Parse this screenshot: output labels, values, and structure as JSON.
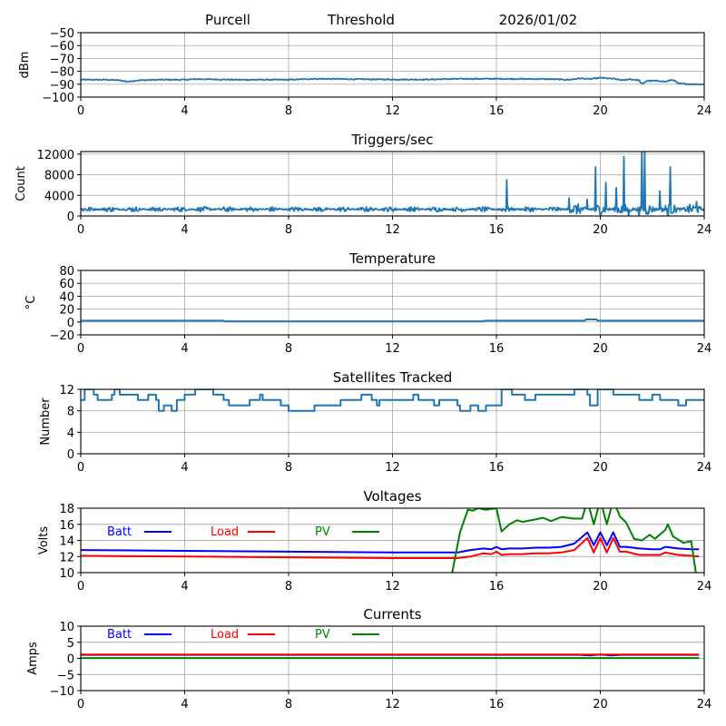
{
  "header": {
    "station": "Purcell",
    "mode": "Threshold",
    "date": "2026/01/02"
  },
  "chart_data": [
    {
      "id": "threshold",
      "type": "line",
      "title": "",
      "xlabel": "",
      "ylabel": "dBm",
      "xlim": [
        0,
        24
      ],
      "ylim": [
        -100,
        -50
      ],
      "xticks": [
        0,
        4,
        8,
        12,
        16,
        20,
        24
      ],
      "yticks": [
        -100,
        -90,
        -80,
        -70,
        -60,
        -50
      ],
      "ytick_labels": [
        "−100",
        "−90",
        "−80",
        "−70",
        "−60",
        "−50"
      ],
      "grid": true,
      "series": [
        {
          "name": "Threshold",
          "color": "#1f77b4",
          "x": [
            0,
            1,
            1.5,
            1.8,
            2.2,
            3,
            4,
            4.5,
            6,
            8,
            9,
            10,
            12,
            13.5,
            14,
            15,
            16,
            18,
            18.8,
            19.2,
            19.6,
            20,
            20.5,
            20.9,
            21.1,
            21.5,
            21.6,
            21.8,
            22.3,
            22.5,
            22.8,
            23,
            23.5,
            24
          ],
          "y": [
            -86.5,
            -86.5,
            -87,
            -88,
            -87,
            -86.5,
            -86.5,
            -86,
            -86.5,
            -86.5,
            -85.8,
            -86,
            -86.3,
            -86.3,
            -86,
            -85.8,
            -85.8,
            -86,
            -86.5,
            -85.5,
            -86,
            -85,
            -85.8,
            -87,
            -86,
            -87,
            -90,
            -87.3,
            -87.5,
            -88,
            -86.5,
            -89.5,
            -90,
            -90
          ]
        }
      ]
    },
    {
      "id": "triggers",
      "type": "line",
      "title": "Triggers/sec",
      "xlabel": "",
      "ylabel": "Count",
      "xlim": [
        0,
        24
      ],
      "ylim": [
        0,
        12500
      ],
      "xticks": [
        0,
        4,
        8,
        12,
        16,
        20,
        24
      ],
      "yticks": [
        0,
        4000,
        8000,
        12000
      ],
      "ytick_labels": [
        "0",
        "4000",
        "8000",
        "12000"
      ],
      "grid": true,
      "series": [
        {
          "name": "Triggers",
          "color": "#1f77b4",
          "baseline": 1300,
          "noise": 500,
          "spikes": [
            [
              16.4,
              7000
            ],
            [
              18.8,
              3500
            ],
            [
              19.5,
              3200
            ],
            [
              19.8,
              9500
            ],
            [
              20.2,
              6500
            ],
            [
              20.6,
              5500
            ],
            [
              20.9,
              11500
            ],
            [
              21.1,
              0
            ],
            [
              21.5,
              0
            ],
            [
              21.6,
              12500
            ],
            [
              21.7,
              12500
            ],
            [
              22.3,
              4800
            ],
            [
              22.7,
              9500
            ],
            [
              22.6,
              0
            ],
            [
              23.7,
              2800
            ]
          ]
        }
      ]
    },
    {
      "id": "temperature",
      "type": "line",
      "title": "Temperature",
      "xlabel": "",
      "ylabel": "°C",
      "xlim": [
        0,
        24
      ],
      "ylim": [
        -20,
        80
      ],
      "xticks": [
        0,
        4,
        8,
        12,
        16,
        20,
        24
      ],
      "yticks": [
        -20,
        0,
        20,
        40,
        60,
        80
      ],
      "ytick_labels": [
        "−20",
        "0",
        "20",
        "40",
        "60",
        "80"
      ],
      "grid": true,
      "series": [
        {
          "name": "Temperature",
          "color": "#1f77b4",
          "x": [
            0,
            5.5,
            5.55,
            15.5,
            15.55,
            19.4,
            19.45,
            19.85,
            19.9,
            24
          ],
          "y": [
            2,
            2,
            1,
            1,
            2,
            2,
            4,
            4,
            2,
            2
          ]
        }
      ]
    },
    {
      "id": "satellites",
      "type": "line",
      "title": "Satellites Tracked",
      "xlabel": "",
      "ylabel": "Number",
      "xlim": [
        0,
        24
      ],
      "ylim": [
        0,
        12
      ],
      "xticks": [
        0,
        4,
        8,
        12,
        16,
        20,
        24
      ],
      "yticks": [
        0,
        4,
        8,
        12
      ],
      "ytick_labels": [
        "0",
        "4",
        "8",
        "12"
      ],
      "grid": true,
      "series": [
        {
          "name": "Satellites",
          "color": "#1f77b4",
          "step": true,
          "x": [
            0,
            0.15,
            0.5,
            0.65,
            1.2,
            1.3,
            1.5,
            1.7,
            2.2,
            2.6,
            2.9,
            3.0,
            3.2,
            3.5,
            3.7,
            4.0,
            4.4,
            5.1,
            5.5,
            5.7,
            6.2,
            6.5,
            6.9,
            7.0,
            7.4,
            7.7,
            8.0,
            8.7,
            9.0,
            9.4,
            10.0,
            10.8,
            11.2,
            11.4,
            11.5,
            12.0,
            12.8,
            13.0,
            13.6,
            13.8,
            14.5,
            14.6,
            15.0,
            15.3,
            15.6,
            16.0,
            16.2,
            16.6,
            17.1,
            17.5,
            18.0,
            19.0,
            19.5,
            19.6,
            19.9,
            20.5,
            21.0,
            21.5,
            22.0,
            22.3,
            22.7,
            23.0,
            23.3,
            23.8,
            24
          ],
          "y": [
            10,
            12,
            11,
            10,
            11,
            12,
            11,
            11,
            10,
            11,
            10,
            8,
            9,
            8,
            10,
            11,
            12,
            11,
            10,
            9,
            9,
            10,
            11,
            10,
            10,
            9,
            8,
            8,
            9,
            9,
            10,
            11,
            10,
            9,
            10,
            10,
            11,
            10,
            9,
            10,
            9,
            8,
            9,
            8,
            9,
            9,
            12,
            11,
            10,
            11,
            11,
            12,
            11,
            9,
            12,
            11,
            11,
            10,
            11,
            10,
            10,
            9,
            10,
            10,
            10
          ]
        }
      ]
    },
    {
      "id": "voltages",
      "type": "line",
      "title": "Voltages",
      "xlabel": "",
      "ylabel": "Volts",
      "xlim": [
        0,
        24
      ],
      "ylim": [
        10,
        18
      ],
      "xticks": [
        0,
        4,
        8,
        12,
        16,
        20,
        24
      ],
      "yticks": [
        10,
        12,
        14,
        16,
        18
      ],
      "ytick_labels": [
        "10",
        "12",
        "14",
        "16",
        "18"
      ],
      "grid": true,
      "legend": [
        {
          "label": "Batt",
          "color": "#0000ff"
        },
        {
          "label": "Load",
          "color": "#ff0000"
        },
        {
          "label": "PV",
          "color": "#008000"
        }
      ],
      "legend_position": "upper-left-row",
      "series": [
        {
          "name": "Batt",
          "color": "#0000ff",
          "x": [
            0,
            4,
            8,
            12,
            14.5,
            15,
            15.5,
            15.8,
            16,
            16.2,
            16.5,
            17,
            17.5,
            18,
            18.5,
            19,
            19.5,
            19.75,
            20,
            20.25,
            20.5,
            20.75,
            21,
            21.5,
            22,
            22.3,
            22.5,
            23,
            23.5,
            23.8
          ],
          "y": [
            12.8,
            12.7,
            12.6,
            12.5,
            12.5,
            12.8,
            13.0,
            12.9,
            13.2,
            12.9,
            13.0,
            13.0,
            13.1,
            13.1,
            13.2,
            13.6,
            15.0,
            13.4,
            15.0,
            13.4,
            15.0,
            13.2,
            13.2,
            13.0,
            12.9,
            12.9,
            13.2,
            13.0,
            12.9,
            12.9
          ]
        },
        {
          "name": "Load",
          "color": "#ff0000",
          "x": [
            0,
            4,
            8,
            12,
            14.5,
            15,
            15.5,
            15.8,
            16,
            16.2,
            16.5,
            17,
            17.5,
            18,
            18.5,
            19,
            19.5,
            19.75,
            20,
            20.25,
            20.5,
            20.75,
            21,
            21.5,
            22,
            22.3,
            22.5,
            23,
            23.5,
            23.8
          ],
          "y": [
            12.1,
            12.0,
            11.9,
            11.8,
            11.8,
            12.0,
            12.4,
            12.3,
            12.6,
            12.2,
            12.3,
            12.3,
            12.4,
            12.4,
            12.5,
            12.8,
            14.3,
            12.5,
            14.3,
            12.5,
            14.3,
            12.6,
            12.6,
            12.2,
            12.2,
            12.2,
            12.5,
            12.2,
            12.1,
            12.0
          ]
        },
        {
          "name": "PV",
          "color": "#008000",
          "x": [
            14.3,
            14.6,
            14.9,
            15.1,
            15.3,
            15.6,
            16.0,
            16.2,
            16.5,
            16.8,
            17.0,
            17.5,
            17.8,
            18.1,
            18.5,
            19.0,
            19.3,
            19.5,
            19.75,
            20.0,
            20.25,
            20.5,
            20.75,
            21.0,
            21.3,
            21.6,
            21.9,
            22.1,
            22.5,
            22.6,
            22.8,
            23.2,
            23.5,
            23.7
          ],
          "y": [
            10.0,
            15.0,
            17.8,
            17.7,
            18.0,
            17.8,
            18.0,
            15.1,
            16.0,
            16.5,
            16.3,
            16.6,
            16.8,
            16.4,
            16.9,
            16.7,
            16.7,
            19.0,
            16.0,
            19.0,
            16.0,
            19.0,
            17.0,
            16.2,
            14.2,
            14.0,
            14.7,
            14.2,
            15.3,
            16.0,
            14.5,
            13.7,
            13.9,
            9.5
          ]
        }
      ]
    },
    {
      "id": "currents",
      "type": "line",
      "title": "Currents",
      "xlabel": "",
      "ylabel": "Amps",
      "xlim": [
        0,
        24
      ],
      "ylim": [
        -10,
        10
      ],
      "xticks": [
        0,
        4,
        8,
        12,
        16,
        20,
        24
      ],
      "yticks": [
        -10,
        -5,
        0,
        5,
        10
      ],
      "ytick_labels": [
        "−10",
        "−5",
        "0",
        "5",
        "10"
      ],
      "grid": true,
      "legend": [
        {
          "label": "Batt",
          "color": "#0000ff"
        },
        {
          "label": "Load",
          "color": "#ff0000"
        },
        {
          "label": "PV",
          "color": "#008000"
        }
      ],
      "legend_position": "upper-left-row",
      "series": [
        {
          "name": "Batt",
          "color": "#0000ff",
          "x": [
            0,
            19.2,
            19.6,
            20.0,
            20.4,
            20.8,
            23.8
          ],
          "y": [
            1.1,
            1.1,
            0.9,
            1.2,
            0.9,
            1.1,
            1.1
          ]
        },
        {
          "name": "Load",
          "color": "#ff0000",
          "x": [
            0,
            23.8
          ],
          "y": [
            1.2,
            1.2
          ]
        },
        {
          "name": "PV",
          "color": "#008000",
          "x": [
            0,
            23.8
          ],
          "y": [
            0.1,
            0.1
          ]
        }
      ]
    }
  ]
}
